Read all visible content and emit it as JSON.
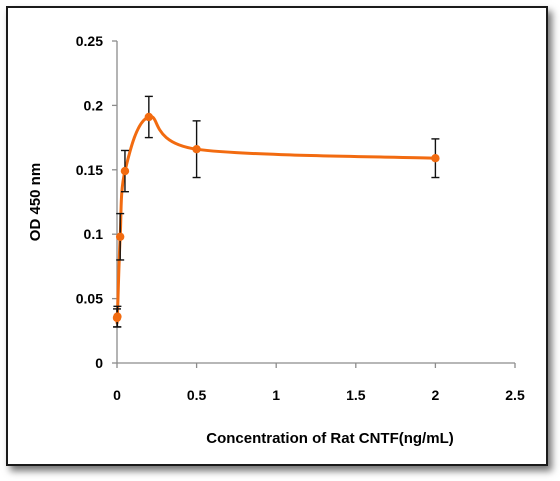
{
  "chart_data": {
    "type": "scatter",
    "title": "",
    "xlabel": "Concentration of Rat CNTF(ng/mL)",
    "ylabel": "OD 450 nm",
    "xlim": [
      0,
      2.5
    ],
    "ylim": [
      0,
      0.25
    ],
    "x_ticks": [
      "0",
      "0.5",
      "1",
      "1.5",
      "2",
      "2.5"
    ],
    "y_ticks": [
      "0",
      "0.05",
      "0.1",
      "0.15",
      "0.2",
      "0.25"
    ],
    "grid": false,
    "legend": "none",
    "smooth_line": true,
    "series": [
      {
        "color": "#F26B10",
        "points": [
          {
            "x": 0.0,
            "y": 0.035,
            "err": 0.007
          },
          {
            "x": 0.0025,
            "y": 0.036,
            "err": 0.008
          },
          {
            "x": 0.02,
            "y": 0.098,
            "err": 0.018
          },
          {
            "x": 0.05,
            "y": 0.149,
            "err": 0.016
          },
          {
            "x": 0.2,
            "y": 0.191,
            "err": 0.016
          },
          {
            "x": 0.5,
            "y": 0.166,
            "err": 0.022
          },
          {
            "x": 2.0,
            "y": 0.159,
            "err": 0.015
          }
        ]
      }
    ]
  }
}
